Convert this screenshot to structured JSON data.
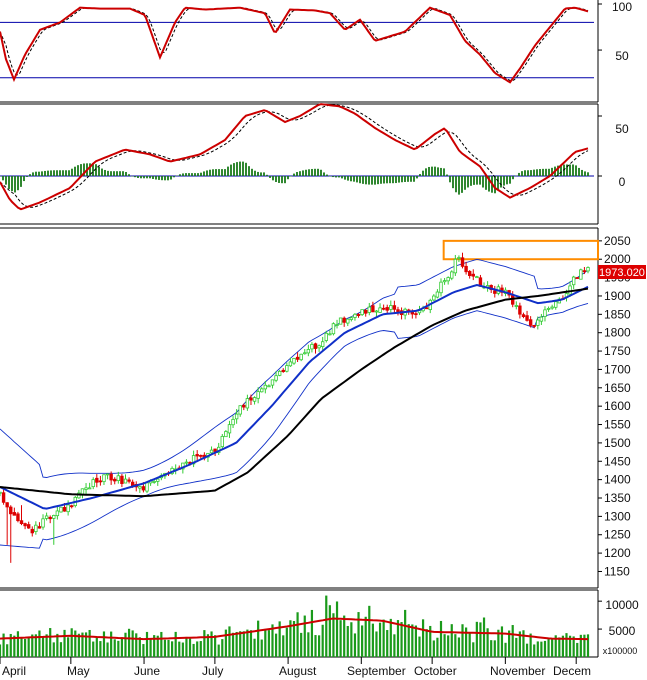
{
  "chart_data": [
    {
      "panel": "stochastic",
      "type": "line",
      "ylim": [
        0,
        100
      ],
      "yticks": [
        "100",
        "50"
      ],
      "reference_lines": [
        80,
        20
      ],
      "colors": {
        "main": "#cc0000",
        "signal": "#000000",
        "reference": "#0000aa"
      }
    },
    {
      "panel": "macd",
      "type": "line",
      "ylim": [
        -40,
        60
      ],
      "yticks": [
        "50",
        "0"
      ],
      "colors": {
        "main": "#cc0000",
        "signal": "#000000",
        "histogram": "#1a7a1a",
        "zero": "#0000aa"
      }
    },
    {
      "panel": "price",
      "type": "candlestick",
      "ylim": [
        1105,
        2085
      ],
      "yticks": [
        "2050",
        "2000",
        "1950",
        "1900",
        "1850",
        "1800",
        "1750",
        "1700",
        "1650",
        "1600",
        "1550",
        "1500",
        "1450",
        "1400",
        "1350",
        "1300",
        "1250",
        "1200",
        "1150"
      ],
      "last_price_label": "1973.020",
      "key_points": {
        "close": [
          [
            "Apr-01",
            1360
          ],
          [
            "Apr-08",
            1290
          ],
          [
            "Apr-15",
            1260
          ],
          [
            "Apr-22",
            1300
          ],
          [
            "May-01",
            1330
          ],
          [
            "May-08",
            1380
          ],
          [
            "May-15",
            1410
          ],
          [
            "May-22",
            1400
          ],
          [
            "Jun-01",
            1380
          ],
          [
            "Jun-10",
            1420
          ],
          [
            "Jun-20",
            1450
          ],
          [
            "Jul-01",
            1480
          ],
          [
            "Jul-08",
            1560
          ],
          [
            "Jul-15",
            1620
          ],
          [
            "Jul-22",
            1650
          ],
          [
            "Jul-29",
            1700
          ],
          [
            "Aug-01",
            1710
          ],
          [
            "Aug-08",
            1740
          ],
          [
            "Aug-15",
            1780
          ],
          [
            "Aug-22",
            1830
          ],
          [
            "Aug-29",
            1850
          ],
          [
            "Sep-05",
            1860
          ],
          [
            "Sep-12",
            1870
          ],
          [
            "Sep-19",
            1855
          ],
          [
            "Sep-26",
            1860
          ],
          [
            "Oct-01",
            1890
          ],
          [
            "Oct-08",
            1960
          ],
          [
            "Oct-12",
            2010
          ],
          [
            "Oct-18",
            1950
          ],
          [
            "Oct-25",
            1920
          ],
          [
            "Nov-01",
            1910
          ],
          [
            "Nov-08",
            1850
          ],
          [
            "Nov-12",
            1820
          ],
          [
            "Nov-18",
            1860
          ],
          [
            "Nov-25",
            1900
          ],
          [
            "Dec-01",
            1950
          ],
          [
            "Dec-04",
            1980
          ],
          [
            "Dec-06",
            1973
          ]
        ],
        "ma50": [
          [
            "Apr-01",
            1380
          ],
          [
            "May-01",
            1360
          ],
          [
            "Jun-01",
            1355
          ],
          [
            "Jul-01",
            1370
          ],
          [
            "Jul-15",
            1420
          ],
          [
            "Aug-01",
            1520
          ],
          [
            "Aug-15",
            1620
          ],
          [
            "Sep-01",
            1700
          ],
          [
            "Sep-15",
            1760
          ],
          [
            "Oct-01",
            1820
          ],
          [
            "Oct-15",
            1860
          ],
          [
            "Nov-01",
            1890
          ],
          [
            "Nov-15",
            1900
          ],
          [
            "Dec-06",
            1920
          ]
        ],
        "bb_mid": [
          [
            "Apr-01",
            1380
          ],
          [
            "Apr-20",
            1320
          ],
          [
            "May-10",
            1350
          ],
          [
            "Jun-01",
            1390
          ],
          [
            "Jun-20",
            1440
          ],
          [
            "Jul-10",
            1500
          ],
          [
            "Jul-25",
            1600
          ],
          [
            "Aug-10",
            1720
          ],
          [
            "Aug-25",
            1800
          ],
          [
            "Sep-10",
            1850
          ],
          [
            "Sep-25",
            1860
          ],
          [
            "Oct-10",
            1910
          ],
          [
            "Oct-20",
            1930
          ],
          [
            "Nov-01",
            1910
          ],
          [
            "Nov-15",
            1880
          ],
          [
            "Nov-25",
            1890
          ],
          [
            "Dec-06",
            1925
          ]
        ],
        "highlight_box": [
          2000,
          2050
        ]
      },
      "colors": {
        "up": "#33cc33",
        "down": "#dd0000",
        "ma_short": "#1030c8",
        "ma_long": "#000000",
        "bands": "#1030c8",
        "box": "#ff8c00",
        "price_tag": "#dd0000"
      }
    },
    {
      "panel": "volume",
      "type": "bar",
      "ylim": [
        0,
        12000
      ],
      "yticks": [
        "10000",
        "5000"
      ],
      "unit_label": "x100000",
      "ma_line": [
        [
          "Apr-01",
          3300
        ],
        [
          "May-01",
          3800
        ],
        [
          "Jun-01",
          3200
        ],
        [
          "Jul-01",
          3600
        ],
        [
          "Aug-01",
          5500
        ],
        [
          "Aug-20",
          6900
        ],
        [
          "Sep-10",
          6500
        ],
        [
          "Oct-01",
          4500
        ],
        [
          "Nov-01",
          4200
        ],
        [
          "Nov-20",
          3300
        ],
        [
          "Dec-06",
          3200
        ]
      ],
      "colors": {
        "bars": "#1a9a1a",
        "ma": "#cc0000"
      }
    }
  ],
  "x_axis": {
    "months": [
      "April",
      "May",
      "June",
      "July",
      "August",
      "September",
      "October",
      "November",
      "Decem"
    ]
  }
}
